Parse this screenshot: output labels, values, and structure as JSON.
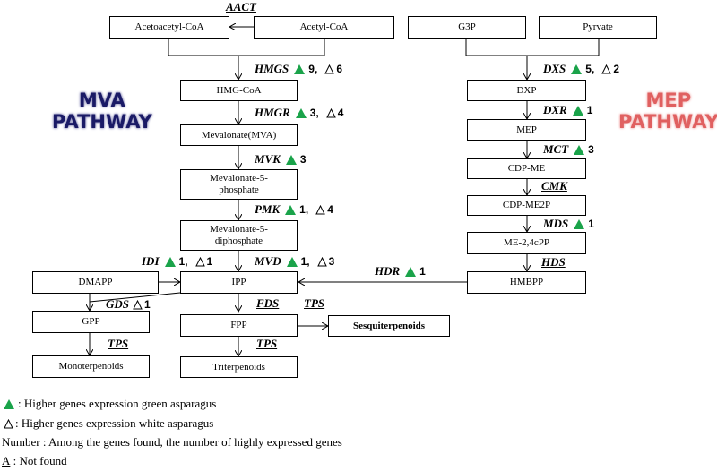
{
  "pathways": {
    "mva": [
      "MVA",
      "PATHWAY"
    ],
    "mep": [
      "MEP",
      "PATHWAY"
    ]
  },
  "nodes": {
    "acetoacetyl_coa": "Acetoacetyl-CoA",
    "acetyl_coa": "Acetyl-CoA",
    "hmg_coa": "HMG-CoA",
    "mevalonate": "Mevalonate(MVA)",
    "mevalonate_5_phosphate": "Mevalonate-5-phosphate",
    "mevalonate_5_diphosphate": "Mevalonate-5-diphosphate",
    "ipp": "IPP",
    "dmapp": "DMAPP",
    "gpp": "GPP",
    "fpp": "FPP",
    "monoterpenoids": "Monoterpenoids",
    "triterpenoids": "Triterpenoids",
    "sesquiterpenoids": "Sesquiterpenoids",
    "g3p": "G3P",
    "pyrvate": "Pyrvate",
    "dxp": "DXP",
    "mep": "MEP",
    "cdp_me": "CDP-ME",
    "cdp_me2p": "CDP-ME2P",
    "me_2_4cpp": "ME-2,4cPP",
    "hmbpp": "HMBPP"
  },
  "genes": {
    "aact": {
      "name": "AACT",
      "not_found": true
    },
    "hmgs": {
      "name": "HMGS",
      "green": "9,",
      "white": "6"
    },
    "hmgr": {
      "name": "HMGR",
      "green": "3,",
      "white": "4"
    },
    "mvk": {
      "name": "MVK",
      "green": "3"
    },
    "pmk": {
      "name": "PMK",
      "green": "1,",
      "white": "4"
    },
    "mvd": {
      "name": "MVD",
      "green": "1,",
      "white": "3"
    },
    "idi": {
      "name": "IDI",
      "green": "1,",
      "white": "1"
    },
    "gds": {
      "name": "GDS",
      "white": "1"
    },
    "fds": {
      "name": "FDS",
      "not_found": true
    },
    "tps_sesq": {
      "name": "TPS",
      "not_found": true
    },
    "tps_mono": {
      "name": "TPS",
      "not_found": true
    },
    "tps_tri": {
      "name": "TPS",
      "not_found": true
    },
    "dxs": {
      "name": "DXS",
      "green": "5,",
      "white": "2"
    },
    "dxr": {
      "name": "DXR",
      "green": "1"
    },
    "mct": {
      "name": "MCT",
      "green": "3"
    },
    "cmk": {
      "name": "CMK",
      "not_found": true
    },
    "mds": {
      "name": "MDS",
      "green": "1"
    },
    "hds": {
      "name": "HDS",
      "not_found": true
    },
    "hdr": {
      "name": "HDR",
      "green": "1"
    }
  },
  "legend": {
    "green": ": Higher genes expression green asparagus",
    "white": ": Higher genes expression white asparagus",
    "number": "Number : Among the genes found,  the number of highly expressed genes",
    "not_found_symbol": "A",
    "not_found_text": " : Not found"
  },
  "colors": {
    "green_triangle": "#1aa34a",
    "mva_text": "#1a1a66",
    "mep_text": "#e06060"
  }
}
